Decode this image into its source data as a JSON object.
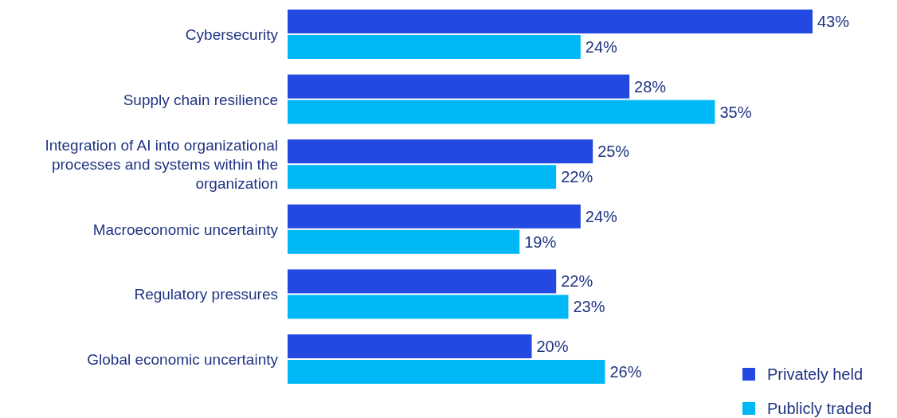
{
  "chart_data": {
    "type": "bar",
    "orientation": "horizontal",
    "categories": [
      "Cybersecurity",
      "Supply chain resilience",
      "Integration of AI into organizational processes and systems within the organization",
      "Macroeconomic uncertainty",
      "Regulatory pressures",
      "Global economic uncertainty"
    ],
    "series": [
      {
        "name": "Privately held",
        "color": "#2449e0",
        "values": [
          43,
          28,
          25,
          24,
          22,
          20
        ],
        "value_labels": [
          "43%",
          "28%",
          "25%",
          "24%",
          "22%",
          "20%"
        ]
      },
      {
        "name": "Publicly traded",
        "color": "#00b8f5",
        "values": [
          24,
          35,
          22,
          19,
          23,
          26
        ],
        "value_labels": [
          "24%",
          "35%",
          "22%",
          "19%",
          "23%",
          "26%"
        ]
      }
    ],
    "legend": "bottom right"
  }
}
